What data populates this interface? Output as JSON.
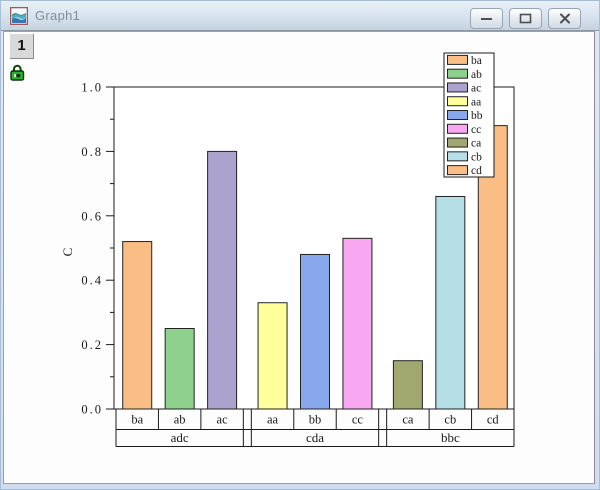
{
  "window": {
    "title": "Graph1",
    "layer_button": "1",
    "buttons": [
      {
        "name": "minimize"
      },
      {
        "name": "maximize"
      },
      {
        "name": "close"
      }
    ],
    "icons": {
      "titlebar": "graph-window-icon",
      "page_lock": "green-lock-icon"
    },
    "colors": {
      "titlebar_top": "#e9f0f7",
      "titlebar_bottom": "#c5d2e0",
      "frame": "#cfdeee",
      "page": "#fdfdfe"
    }
  },
  "chart_data": {
    "type": "bar",
    "title": "",
    "xlabel": "",
    "ylabel": "C",
    "ylim": [
      0.0,
      1.0
    ],
    "y_major_ticks": [
      "0.0",
      "0.2",
      "0.4",
      "0.6",
      "0.8",
      "1.0"
    ],
    "y_minor_ticks": [
      0.1,
      0.3,
      0.5,
      0.7,
      0.9
    ],
    "grid": false,
    "frame": "box",
    "legend_position": "top-right",
    "groups": [
      {
        "label": "adc",
        "categories": [
          "ba",
          "ab",
          "ac"
        ],
        "values": [
          0.52,
          0.25,
          0.8
        ],
        "colors": [
          "#FABD85",
          "#8DD18D",
          "#ABA3CE"
        ]
      },
      {
        "label": "cda",
        "categories": [
          "aa",
          "bb",
          "cc"
        ],
        "values": [
          0.33,
          0.48,
          0.53
        ],
        "colors": [
          "#FFFF9B",
          "#89A7EC",
          "#F8A8F0"
        ]
      },
      {
        "label": "bbc",
        "categories": [
          "ca",
          "cb",
          "cd"
        ],
        "values": [
          0.15,
          0.66,
          0.88
        ],
        "colors": [
          "#A1A86F",
          "#B5DEE7",
          "#FABD85"
        ]
      }
    ],
    "legend_entries": [
      {
        "label": "ba",
        "color": "#FABD85"
      },
      {
        "label": "ab",
        "color": "#8DD18D"
      },
      {
        "label": "ac",
        "color": "#ABA3CE"
      },
      {
        "label": "aa",
        "color": "#FFFF9B"
      },
      {
        "label": "bb",
        "color": "#89A7EC"
      },
      {
        "label": "cc",
        "color": "#F8A8F0"
      },
      {
        "label": "ca",
        "color": "#A1A86F"
      },
      {
        "label": "cb",
        "color": "#B5DEE7"
      },
      {
        "label": "cd",
        "color": "#FABD85"
      }
    ],
    "bar_outline_color": "#222222",
    "axis_color": "#1a1a1a"
  }
}
